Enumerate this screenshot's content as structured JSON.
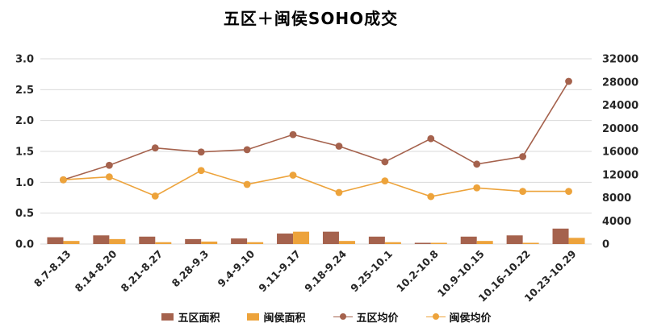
{
  "title": "五区＋闽侯SOHO成交",
  "colors": {
    "brown": "#A5624D",
    "orange": "#EDA33B",
    "grid": "#D9D9D9",
    "axis_text": "#262626"
  },
  "chart_data": {
    "type": "combo-bar-line",
    "title": "五区＋闽侯SOHO成交",
    "categories": [
      "8.7-8.13",
      "8.14-8.20",
      "8.21-8.27",
      "8.28-9.3",
      "9.4-9.10",
      "9.11-9.17",
      "9.18-9.24",
      "9.25-10.1",
      "10.2-10.8",
      "10.9-10.15",
      "10.16-10.22",
      "10.23-10.29"
    ],
    "series": [
      {
        "name": "五区面积",
        "type": "bar",
        "axis": "left",
        "color": "#A5624D",
        "values": [
          0.11,
          0.14,
          0.12,
          0.08,
          0.09,
          0.17,
          0.2,
          0.12,
          0.02,
          0.12,
          0.14,
          0.25
        ]
      },
      {
        "name": "闽侯面积",
        "type": "bar",
        "axis": "left",
        "color": "#EDA33B",
        "values": [
          0.05,
          0.08,
          0.03,
          0.04,
          0.03,
          0.2,
          0.05,
          0.03,
          0.02,
          0.05,
          0.02,
          0.1
        ]
      },
      {
        "name": "五区均价",
        "type": "line",
        "axis": "right",
        "color": "#A5624D",
        "values": [
          11100,
          13600,
          16600,
          15900,
          16300,
          18900,
          16900,
          14200,
          18200,
          13800,
          15100,
          28100
        ]
      },
      {
        "name": "闽侯均价",
        "type": "line",
        "axis": "right",
        "color": "#EDA33B",
        "values": [
          11100,
          11600,
          8300,
          12700,
          10300,
          11900,
          8900,
          10900,
          8200,
          9700,
          9100,
          9100
        ]
      }
    ],
    "left_axis": {
      "min": 0,
      "max": 3,
      "step": 0.5,
      "labels": [
        "0.0",
        "0.5",
        "1.0",
        "1.5",
        "2.0",
        "2.5",
        "3.0"
      ]
    },
    "right_axis": {
      "min": 0,
      "max": 32000,
      "step": 4000,
      "labels": [
        "0",
        "4000",
        "8000",
        "12000",
        "16000",
        "20000",
        "24000",
        "28000",
        "32000"
      ]
    },
    "grid": true,
    "legend_position": "bottom"
  }
}
